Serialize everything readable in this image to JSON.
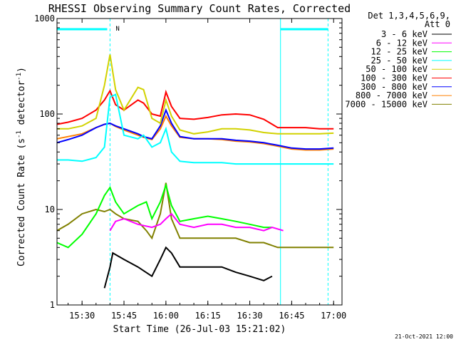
{
  "chart_data": {
    "type": "line",
    "title": "RHESSI Observing Summary Count Rates, Corrected",
    "xlabel": "Start Time (26-Jul-03 15:21:02)",
    "ylabel": "Corrected Count Rate (s",
    "ylabel_sup1": "-1",
    "ylabel_mid": " detector",
    "ylabel_sup2": "-1",
    "ylabel_end": ")",
    "yscale": "log",
    "ylim": [
      1,
      1000
    ],
    "xlim": [
      "15:21:02",
      "17:03:00"
    ],
    "x_ticks": [
      "15:30",
      "15:45",
      "16:00",
      "16:15",
      "16:30",
      "16:45",
      "17:00"
    ],
    "y_ticks": [
      "1",
      "10",
      "100",
      "1000"
    ],
    "legend_title": "Det 1,3,4,5,6,9,",
    "legend_subtitle": "Att 0",
    "legend_position": "right",
    "footer_date": "21-Oct-2021 12:00",
    "annotations": {
      "marker_label": "N",
      "flag_bars": [
        [
          "15:21:02",
          "15:39:00"
        ],
        [
          "16:41:00",
          "16:58:00"
        ]
      ],
      "vertical_lines": [
        {
          "time": "15:40:00",
          "style": "dashed"
        },
        {
          "time": "16:41:00",
          "style": "solid"
        },
        {
          "time": "16:58:00",
          "style": "dashed"
        }
      ]
    },
    "series": [
      {
        "name": "3 - 6 keV",
        "color": "#000000",
        "x": [
          "15:38",
          "15:40",
          "15:41",
          "15:45",
          "15:50",
          "15:55",
          "15:58",
          "16:00",
          "16:02",
          "16:05",
          "16:10",
          "16:15",
          "16:20",
          "16:25",
          "16:30",
          "16:35",
          "16:38"
        ],
        "y": [
          1.5,
          2.5,
          3.5,
          3.0,
          2.5,
          2.0,
          3.0,
          4.0,
          3.5,
          2.5,
          2.5,
          2.5,
          2.5,
          2.2,
          2.0,
          1.8,
          2.0
        ]
      },
      {
        "name": "6 - 12 keV",
        "color": "#ff00ff",
        "x": [
          "15:40",
          "15:42",
          "15:45",
          "15:50",
          "15:55",
          "15:58",
          "16:00",
          "16:02",
          "16:05",
          "16:10",
          "16:15",
          "16:20",
          "16:25",
          "16:30",
          "16:35",
          "16:38",
          "16:42"
        ],
        "y": [
          6.0,
          7.5,
          8.0,
          7.0,
          6.5,
          7.0,
          8.0,
          9.0,
          7.0,
          6.5,
          7.0,
          7.0,
          6.5,
          6.5,
          6.0,
          6.5,
          6.0
        ]
      },
      {
        "name": "12 - 25 keV",
        "color": "#00ff00",
        "x": [
          "15:21",
          "15:25",
          "15:30",
          "15:35",
          "15:38",
          "15:40",
          "15:42",
          "15:45",
          "15:50",
          "15:53",
          "15:55",
          "15:58",
          "16:00",
          "16:02",
          "16:05",
          "16:10",
          "16:15",
          "16:20",
          "16:25",
          "16:30",
          "16:35",
          "16:38"
        ],
        "y": [
          4.5,
          4.0,
          5.5,
          9.0,
          14.0,
          17.0,
          12.0,
          9.0,
          11.0,
          12.0,
          8.0,
          12.0,
          18.0,
          11.0,
          7.5,
          8.0,
          8.5,
          8.0,
          7.5,
          7.0,
          6.5,
          6.5
        ]
      },
      {
        "name": "25 - 50 keV",
        "color": "#00ffff",
        "x": [
          "15:21",
          "15:25",
          "15:30",
          "15:35",
          "15:38",
          "15:40",
          "15:42",
          "15:45",
          "15:50",
          "15:52",
          "15:55",
          "15:58",
          "16:00",
          "16:02",
          "16:05",
          "16:10",
          "16:15",
          "16:20",
          "16:25",
          "16:30",
          "16:35",
          "16:40",
          "16:45",
          "16:50",
          "16:55",
          "17:00"
        ],
        "y": [
          33,
          33,
          32,
          35,
          45,
          150,
          160,
          60,
          55,
          60,
          45,
          50,
          70,
          40,
          32,
          31,
          31,
          31,
          30,
          30,
          30,
          30,
          30,
          30,
          30,
          30
        ]
      },
      {
        "name": "50 - 100 keV",
        "color": "#d2d200",
        "x": [
          "15:21",
          "15:25",
          "15:30",
          "15:35",
          "15:38",
          "15:40",
          "15:42",
          "15:45",
          "15:50",
          "15:52",
          "15:55",
          "15:58",
          "16:00",
          "16:02",
          "16:05",
          "16:10",
          "16:15",
          "16:20",
          "16:25",
          "16:30",
          "16:35",
          "16:40",
          "16:45",
          "16:50",
          "16:55",
          "17:00"
        ],
        "y": [
          70,
          70,
          75,
          90,
          200,
          420,
          180,
          110,
          190,
          180,
          90,
          80,
          140,
          95,
          68,
          62,
          65,
          70,
          70,
          68,
          64,
          62,
          62,
          62,
          62,
          63
        ]
      },
      {
        "name": "100 - 300 keV",
        "color": "#ff0000",
        "x": [
          "15:21",
          "15:25",
          "15:30",
          "15:35",
          "15:38",
          "15:40",
          "15:42",
          "15:45",
          "15:50",
          "15:52",
          "15:55",
          "15:58",
          "16:00",
          "16:02",
          "16:05",
          "16:10",
          "16:15",
          "16:20",
          "16:25",
          "16:30",
          "16:35",
          "16:40",
          "16:45",
          "16:50",
          "16:55",
          "17:00"
        ],
        "y": [
          78,
          82,
          90,
          110,
          140,
          175,
          125,
          110,
          140,
          130,
          100,
          95,
          170,
          120,
          90,
          88,
          92,
          98,
          100,
          98,
          88,
          72,
          72,
          72,
          70,
          70
        ]
      },
      {
        "name": "300 - 800 keV",
        "color": "#0000ff",
        "x": [
          "15:21",
          "15:25",
          "15:30",
          "15:35",
          "15:38",
          "15:40",
          "15:42",
          "15:45",
          "15:50",
          "15:52",
          "15:55",
          "15:58",
          "16:00",
          "16:02",
          "16:05",
          "16:10",
          "16:15",
          "16:20",
          "16:25",
          "16:30",
          "16:35",
          "16:40",
          "16:45",
          "16:50",
          "16:55",
          "17:00"
        ],
        "y": [
          50,
          54,
          60,
          72,
          78,
          80,
          75,
          70,
          62,
          58,
          55,
          75,
          110,
          80,
          58,
          55,
          55,
          55,
          53,
          52,
          50,
          47,
          44,
          43,
          43,
          44
        ]
      },
      {
        "name": "800 - 7000 keV",
        "color": "#ff8000",
        "x": [
          "15:21",
          "15:25",
          "15:30",
          "15:35",
          "15:38",
          "15:40",
          "15:42",
          "15:45",
          "15:50",
          "15:52",
          "15:55",
          "15:58",
          "16:00",
          "16:02",
          "16:05",
          "16:10",
          "16:15",
          "16:20",
          "16:25",
          "16:30",
          "16:35",
          "16:40",
          "16:45",
          "16:50",
          "16:55",
          "17:00"
        ],
        "y": [
          55,
          58,
          62,
          72,
          78,
          80,
          74,
          68,
          60,
          57,
          54,
          70,
          95,
          75,
          57,
          55,
          55,
          54,
          52,
          51,
          49,
          46,
          43,
          42,
          42,
          43
        ]
      },
      {
        "name": "7000 - 15000 keV",
        "color": "#808000",
        "x": [
          "15:21",
          "15:25",
          "15:30",
          "15:35",
          "15:38",
          "15:40",
          "15:42",
          "15:45",
          "15:50",
          "15:53",
          "15:55",
          "15:58",
          "16:00",
          "16:02",
          "16:05",
          "16:10",
          "16:15",
          "16:20",
          "16:25",
          "16:30",
          "16:35",
          "16:40",
          "16:45",
          "16:50",
          "16:55",
          "17:00"
        ],
        "y": [
          6.0,
          7.0,
          9.0,
          10.0,
          9.5,
          10.0,
          9.0,
          8.0,
          7.5,
          6.0,
          5.0,
          9.0,
          19.0,
          8.0,
          5.0,
          5.0,
          5.0,
          5.0,
          5.0,
          4.5,
          4.5,
          4.0,
          4.0,
          4.0,
          4.0,
          4.0
        ]
      }
    ]
  }
}
